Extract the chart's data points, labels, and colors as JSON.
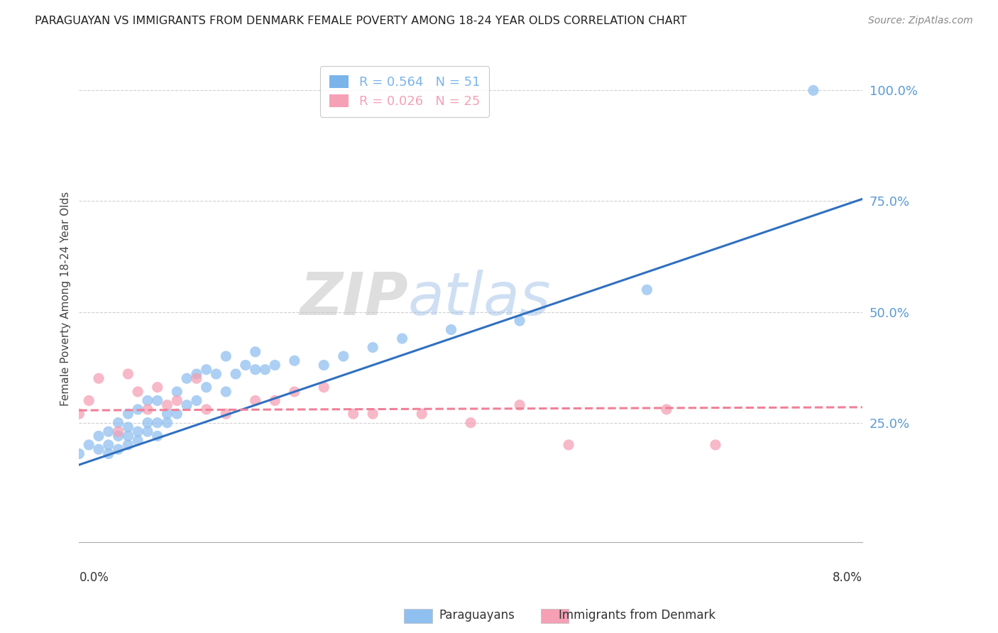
{
  "title": "PARAGUAYAN VS IMMIGRANTS FROM DENMARK FEMALE POVERTY AMONG 18-24 YEAR OLDS CORRELATION CHART",
  "source": "Source: ZipAtlas.com",
  "ylabel": "Female Poverty Among 18-24 Year Olds",
  "y_ticks": [
    0.25,
    0.5,
    0.75,
    1.0
  ],
  "y_tick_labels": [
    "25.0%",
    "50.0%",
    "75.0%",
    "100.0%"
  ],
  "x_lim": [
    0.0,
    0.08
  ],
  "y_lim": [
    -0.02,
    1.08
  ],
  "watermark_zip": "ZIP",
  "watermark_atlas": "atlas",
  "legend_entries": [
    {
      "label": "R = 0.564   N = 51",
      "color": "#7ab4ea"
    },
    {
      "label": "R = 0.026   N = 25",
      "color": "#f5a0b5"
    }
  ],
  "paraguayan_dots_color": "#90c0f0",
  "denmark_dots_color": "#f5a0b5",
  "paraguayan_line_color": "#3070c0",
  "denmark_line_color": "#f08098",
  "blue_scatter_x": [
    0.0,
    0.001,
    0.002,
    0.002,
    0.003,
    0.003,
    0.003,
    0.004,
    0.004,
    0.004,
    0.005,
    0.005,
    0.005,
    0.005,
    0.006,
    0.006,
    0.006,
    0.007,
    0.007,
    0.007,
    0.008,
    0.008,
    0.008,
    0.009,
    0.009,
    0.01,
    0.01,
    0.011,
    0.011,
    0.012,
    0.012,
    0.013,
    0.013,
    0.014,
    0.015,
    0.015,
    0.016,
    0.017,
    0.018,
    0.018,
    0.019,
    0.02,
    0.022,
    0.025,
    0.027,
    0.03,
    0.033,
    0.038,
    0.045,
    0.058,
    0.075
  ],
  "blue_scatter_y": [
    0.18,
    0.2,
    0.19,
    0.22,
    0.18,
    0.2,
    0.23,
    0.19,
    0.22,
    0.25,
    0.2,
    0.22,
    0.24,
    0.27,
    0.21,
    0.23,
    0.28,
    0.23,
    0.25,
    0.3,
    0.22,
    0.25,
    0.3,
    0.25,
    0.27,
    0.27,
    0.32,
    0.29,
    0.35,
    0.3,
    0.36,
    0.33,
    0.37,
    0.36,
    0.32,
    0.4,
    0.36,
    0.38,
    0.37,
    0.41,
    0.37,
    0.38,
    0.39,
    0.38,
    0.4,
    0.42,
    0.44,
    0.46,
    0.48,
    0.55,
    1.0
  ],
  "pink_scatter_x": [
    0.0,
    0.001,
    0.002,
    0.004,
    0.005,
    0.006,
    0.007,
    0.008,
    0.009,
    0.01,
    0.012,
    0.013,
    0.015,
    0.018,
    0.02,
    0.022,
    0.025,
    0.028,
    0.03,
    0.035,
    0.04,
    0.045,
    0.05,
    0.06,
    0.065
  ],
  "pink_scatter_y": [
    0.27,
    0.3,
    0.35,
    0.23,
    0.36,
    0.32,
    0.28,
    0.33,
    0.29,
    0.3,
    0.35,
    0.28,
    0.27,
    0.3,
    0.3,
    0.32,
    0.33,
    0.27,
    0.27,
    0.27,
    0.25,
    0.29,
    0.2,
    0.28,
    0.2
  ],
  "blue_line_x0": 0.0,
  "blue_line_y0": 0.155,
  "blue_line_x1": 0.08,
  "blue_line_y1": 0.755,
  "pink_line_x0": 0.0,
  "pink_line_y0": 0.278,
  "pink_line_x1": 0.08,
  "pink_line_y1": 0.285
}
